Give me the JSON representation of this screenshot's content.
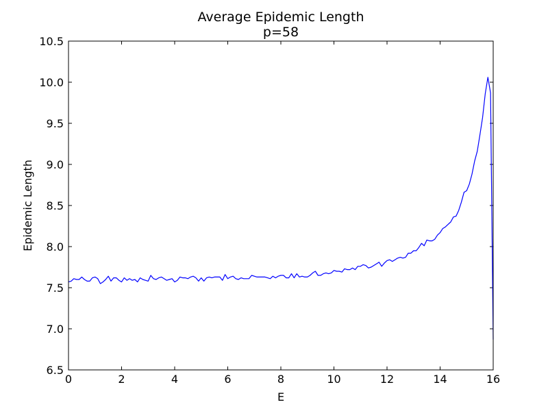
{
  "chart_data": {
    "type": "line",
    "title": "Average Epidemic Length",
    "subtitle": "p=58",
    "xlabel": "E",
    "ylabel": "Epidemic Length",
    "xlim": [
      0,
      16
    ],
    "ylim": [
      6.5,
      10.5
    ],
    "xticks": [
      "0",
      "2",
      "4",
      "6",
      "8",
      "10",
      "12",
      "14",
      "16"
    ],
    "yticks": [
      "6.5",
      "7.0",
      "7.5",
      "8.0",
      "8.5",
      "9.0",
      "9.5",
      "10.0",
      "10.5"
    ],
    "grid": false,
    "line_color": "#0000ff",
    "series": [
      {
        "x": [
          0.0,
          0.1,
          0.2,
          0.3,
          0.4,
          0.5,
          0.6,
          0.7,
          0.8,
          0.9,
          1.0,
          1.1,
          1.2,
          1.3,
          1.4,
          1.5,
          1.6,
          1.7,
          1.8,
          1.9,
          2.0,
          2.1,
          2.2,
          2.3,
          2.4,
          2.5,
          2.6,
          2.7,
          2.8,
          2.9,
          3.0,
          3.1,
          3.2,
          3.3,
          3.4,
          3.5,
          3.6,
          3.7,
          3.8,
          3.9,
          4.0,
          4.1,
          4.2,
          4.3,
          4.4,
          4.5,
          4.6,
          4.7,
          4.8,
          4.9,
          5.0,
          5.1,
          5.2,
          5.3,
          5.4,
          5.5,
          5.6,
          5.7,
          5.8,
          5.9,
          6.0,
          6.1,
          6.2,
          6.3,
          6.4,
          6.5,
          6.6,
          6.7,
          6.8,
          6.9,
          7.0,
          7.1,
          7.2,
          7.3,
          7.4,
          7.5,
          7.6,
          7.7,
          7.8,
          7.9,
          8.0,
          8.1,
          8.2,
          8.3,
          8.4,
          8.5,
          8.6,
          8.7,
          8.8,
          8.9,
          9.0,
          9.1,
          9.2,
          9.3,
          9.4,
          9.5,
          9.6,
          9.7,
          9.8,
          9.9,
          10.0,
          10.1,
          10.2,
          10.3,
          10.4,
          10.5,
          10.6,
          10.7,
          10.8,
          10.9,
          11.0,
          11.1,
          11.2,
          11.3,
          11.4,
          11.5,
          11.6,
          11.7,
          11.8,
          11.9,
          12.0,
          12.1,
          12.2,
          12.3,
          12.4,
          12.5,
          12.6,
          12.7,
          12.8,
          12.9,
          13.0,
          13.1,
          13.2,
          13.3,
          13.4,
          13.5,
          13.6,
          13.7,
          13.8,
          13.9,
          14.0,
          14.1,
          14.2,
          14.3,
          14.4,
          14.5,
          14.6,
          14.7,
          14.8,
          14.9,
          15.0,
          15.1,
          15.2,
          15.3,
          15.4,
          15.5,
          15.6,
          15.7,
          15.8,
          15.9,
          16.0
        ],
        "y": [
          7.57,
          7.58,
          7.61,
          7.6,
          7.6,
          7.63,
          7.6,
          7.58,
          7.58,
          7.62,
          7.63,
          7.61,
          7.55,
          7.57,
          7.6,
          7.64,
          7.58,
          7.62,
          7.62,
          7.59,
          7.57,
          7.62,
          7.59,
          7.61,
          7.59,
          7.6,
          7.57,
          7.62,
          7.6,
          7.59,
          7.58,
          7.65,
          7.61,
          7.6,
          7.62,
          7.63,
          7.61,
          7.59,
          7.6,
          7.61,
          7.57,
          7.59,
          7.63,
          7.62,
          7.62,
          7.61,
          7.63,
          7.64,
          7.62,
          7.58,
          7.62,
          7.58,
          7.62,
          7.63,
          7.62,
          7.63,
          7.63,
          7.63,
          7.59,
          7.66,
          7.61,
          7.63,
          7.64,
          7.61,
          7.6,
          7.62,
          7.61,
          7.61,
          7.61,
          7.65,
          7.64,
          7.63,
          7.63,
          7.63,
          7.63,
          7.62,
          7.61,
          7.64,
          7.62,
          7.64,
          7.65,
          7.65,
          7.62,
          7.62,
          7.67,
          7.62,
          7.67,
          7.63,
          7.64,
          7.63,
          7.63,
          7.65,
          7.68,
          7.7,
          7.65,
          7.65,
          7.67,
          7.68,
          7.67,
          7.68,
          7.71,
          7.7,
          7.7,
          7.69,
          7.73,
          7.72,
          7.72,
          7.74,
          7.72,
          7.76,
          7.76,
          7.78,
          7.77,
          7.74,
          7.75,
          7.77,
          7.79,
          7.81,
          7.76,
          7.8,
          7.83,
          7.84,
          7.82,
          7.84,
          7.86,
          7.87,
          7.86,
          7.87,
          7.92,
          7.92,
          7.95,
          7.95,
          7.99,
          8.04,
          8.01,
          8.08,
          8.07,
          8.07,
          8.09,
          8.14,
          8.17,
          8.22,
          8.24,
          8.27,
          8.3,
          8.36,
          8.37,
          8.44,
          8.54,
          8.66,
          8.68,
          8.76,
          8.88,
          9.04,
          9.16,
          9.36,
          9.57,
          9.86,
          10.06,
          9.87,
          6.87
        ]
      }
    ]
  }
}
